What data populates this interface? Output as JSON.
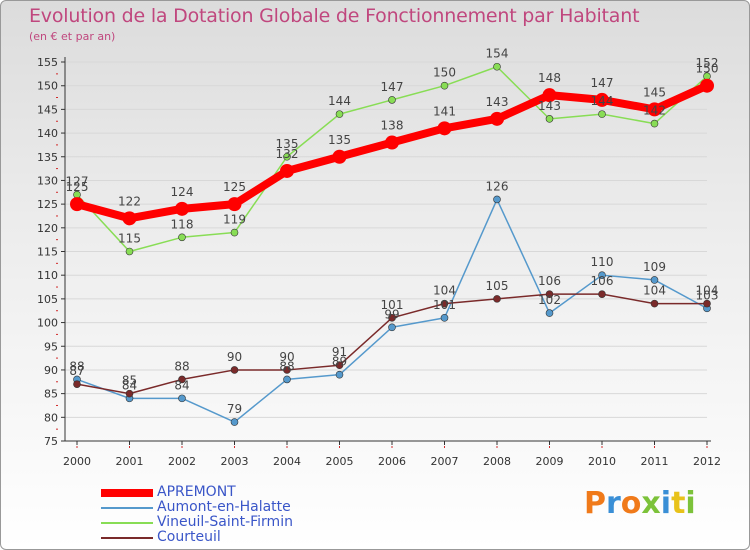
{
  "header": {
    "title": "Evolution de la Dotation Globale de Fonctionnement par Habitant",
    "subtitle": "(en € et par an)"
  },
  "brand": {
    "text": "Proxiti",
    "colors": [
      "#f07a1a",
      "#3a8fd6",
      "#f07a1a",
      "#7cc23a",
      "#3a8fd6",
      "#e8c21a",
      "#7cc23a"
    ]
  },
  "colors": {
    "title": "#c0477e",
    "axis": "#333333",
    "grid": "#d8d8d8",
    "tick_red": "#d12a2a",
    "legend_text": "#3a56c8"
  },
  "chart_data": {
    "type": "line",
    "title": "Evolution de la Dotation Globale de Fonctionnement par Habitant",
    "subtitle": "(en € et par an)",
    "x": [
      "2000",
      "2001",
      "2002",
      "2003",
      "2004",
      "2005",
      "2006",
      "2007",
      "2008",
      "2009",
      "2010",
      "2011",
      "2012"
    ],
    "ylim": [
      75,
      155
    ],
    "yticks": [
      75,
      80,
      85,
      90,
      95,
      100,
      105,
      110,
      115,
      120,
      125,
      130,
      135,
      140,
      145,
      150,
      155
    ],
    "grid": true,
    "legend_position": "bottom-left",
    "series": [
      {
        "name": "APREMONT",
        "color": "#ff0000",
        "values": [
          125,
          122,
          124,
          125,
          132,
          135,
          138,
          141,
          143,
          148,
          147,
          145,
          150
        ]
      },
      {
        "name": "Aumont-en-Halatte",
        "color": "#5599cc",
        "values": [
          88,
          84,
          84,
          79,
          88,
          89,
          99,
          101,
          126,
          102,
          110,
          109,
          103
        ]
      },
      {
        "name": "Vineuil-Saint-Firmin",
        "color": "#88dd55",
        "values": [
          127,
          115,
          118,
          119,
          135,
          144,
          147,
          150,
          154,
          143,
          144,
          142,
          152
        ]
      },
      {
        "name": "Courteuil",
        "color": "#7a2a2a",
        "values": [
          87,
          85,
          88,
          90,
          90,
          91,
          101,
          104,
          105,
          106,
          106,
          104,
          104
        ]
      }
    ],
    "labels": {
      "APREMONT": [
        "125",
        "122",
        "124",
        "125",
        "132",
        "135",
        "138",
        "141",
        "143",
        "148",
        "147",
        "145",
        "150"
      ],
      "Aumont-en-Halatte": [
        "88",
        "84",
        "84",
        "79",
        "88",
        "89",
        "99",
        "101",
        "126",
        "102",
        "110",
        "109",
        "103"
      ],
      "Vineuil-Saint-Firmin": [
        "127",
        "115",
        "118",
        "119",
        "135",
        "144",
        "147",
        "150",
        "154",
        "143",
        "144",
        "142",
        "152"
      ],
      "Courteuil": [
        "87",
        "85",
        "88",
        "90",
        "90",
        "91",
        "101",
        "104",
        "105",
        "106",
        "106",
        "104",
        "104"
      ]
    }
  }
}
